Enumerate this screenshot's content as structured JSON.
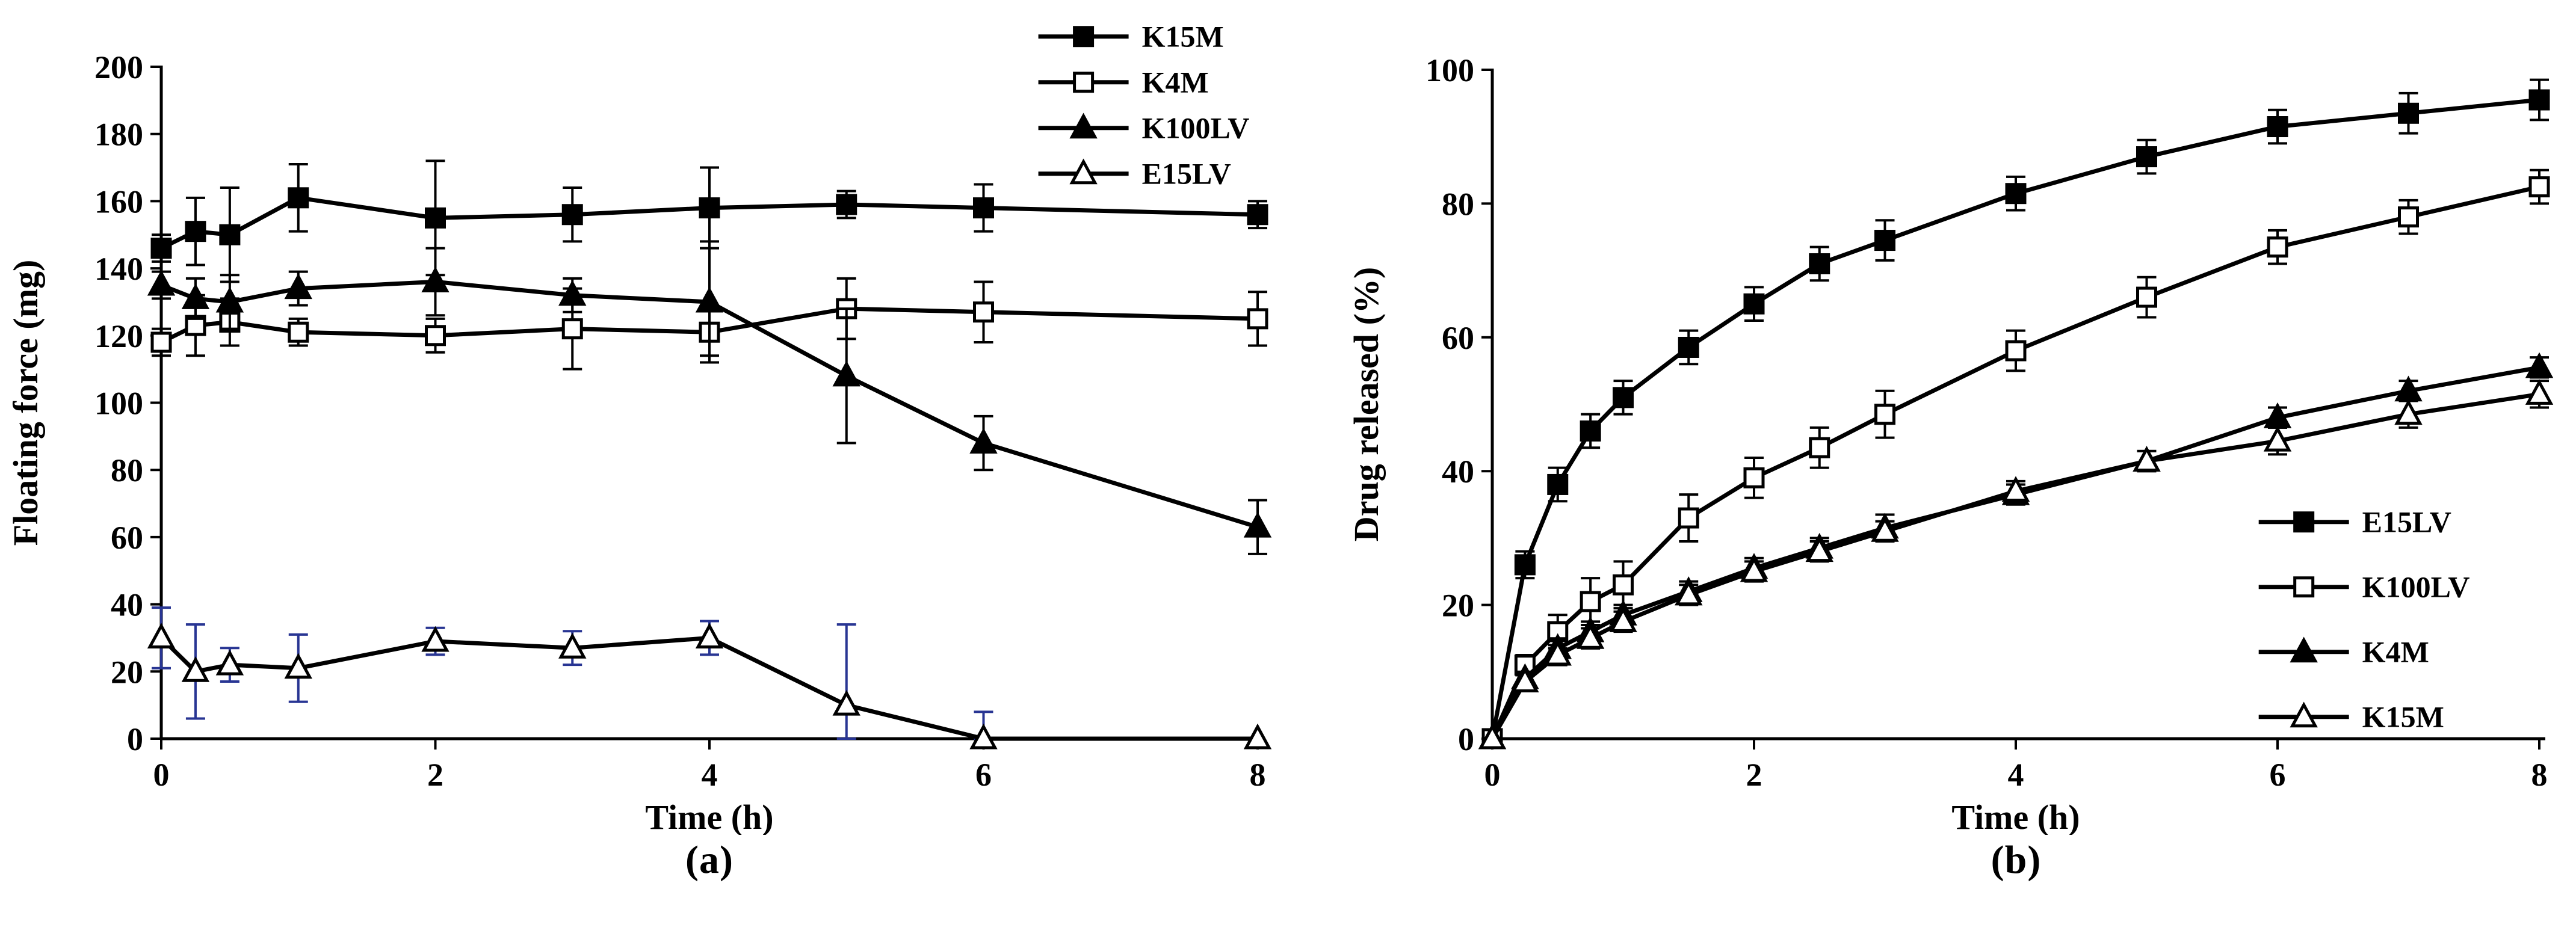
{
  "colors": {
    "line": "#000000",
    "background": "#ffffff",
    "e15lv_error_bar": "#283593"
  },
  "panels": [
    {
      "label": "(a)"
    },
    {
      "label": "(b)"
    }
  ],
  "chart_data": [
    {
      "type": "line",
      "title": "",
      "xlabel": "Time (h)",
      "ylabel": "Floating force (mg)",
      "xlim": [
        0,
        8
      ],
      "ylim": [
        0,
        200
      ],
      "xticks": [
        0,
        2,
        4,
        6,
        8
      ],
      "yticks": [
        0,
        20,
        40,
        60,
        80,
        100,
        120,
        140,
        160,
        180,
        200
      ],
      "grid": false,
      "legend_position": {
        "x_frac": 0.8,
        "y_frac": -0.045
      },
      "x": [
        0,
        0.25,
        0.5,
        1,
        2,
        3,
        4,
        5,
        6,
        8
      ],
      "series": [
        {
          "name": "K15M",
          "marker": "square-filled",
          "color": "#000000",
          "values": [
            146,
            151,
            150,
            161,
            155,
            156,
            158,
            159,
            158,
            156
          ],
          "errors": [
            4,
            10,
            14,
            10,
            17,
            8,
            12,
            4,
            7,
            4
          ]
        },
        {
          "name": "K4M",
          "marker": "square-open",
          "color": "#000000",
          "values": [
            118,
            123,
            124,
            121,
            120,
            122,
            121,
            128,
            127,
            125
          ],
          "errors": [
            4,
            9,
            7,
            4,
            5,
            12,
            7,
            9,
            9,
            8
          ]
        },
        {
          "name": "K100LV",
          "marker": "triangle-filled",
          "color": "#000000",
          "values": [
            135,
            131,
            130,
            134,
            136,
            132,
            130,
            108,
            88,
            63
          ],
          "errors": [
            4,
            6,
            8,
            5,
            10,
            5,
            18,
            20,
            8,
            8
          ]
        },
        {
          "name": "E15LV",
          "marker": "triangle-open",
          "color": "#000000",
          "error_color": "#283593",
          "values": [
            30,
            20,
            22,
            21,
            29,
            27,
            30,
            10,
            0,
            0
          ],
          "errors": [
            9,
            14,
            5,
            10,
            4,
            5,
            5,
            24,
            8,
            0
          ]
        }
      ]
    },
    {
      "type": "line",
      "title": "",
      "xlabel": "Time (h)",
      "ylabel": "Drug released (%)",
      "xlim": [
        0,
        8
      ],
      "ylim": [
        0,
        100
      ],
      "xticks": [
        0,
        2,
        4,
        6,
        8
      ],
      "yticks": [
        0,
        20,
        40,
        60,
        80,
        100
      ],
      "grid": false,
      "legend_position": {
        "x_frac": 0.732,
        "y_frac": 0.676
      },
      "x": [
        0,
        0.25,
        0.5,
        0.75,
        1,
        1.5,
        2,
        2.5,
        3,
        4,
        5,
        6,
        7,
        8
      ],
      "series": [
        {
          "name": "E15LV",
          "marker": "square-filled",
          "color": "#000000",
          "values": [
            0,
            26,
            38,
            46,
            51,
            58.5,
            65,
            71,
            74.5,
            81.5,
            87,
            91.5,
            93.5,
            95.5
          ],
          "errors": [
            0,
            2,
            2.5,
            2.5,
            2.5,
            2.5,
            2.5,
            2.5,
            3,
            2.5,
            2.5,
            2.5,
            3,
            3
          ]
        },
        {
          "name": "K100LV",
          "marker": "square-open",
          "color": "#000000",
          "values": [
            0,
            11,
            16,
            20.5,
            23,
            33,
            39,
            43.5,
            48.5,
            58,
            66,
            73.5,
            78,
            82.5
          ],
          "errors": [
            0,
            1.5,
            2.5,
            3.5,
            3.5,
            3.5,
            3,
            3,
            3.5,
            3,
            3,
            2.5,
            2.5,
            2.5
          ]
        },
        {
          "name": "K4M",
          "marker": "triangle-filled",
          "color": "#000000",
          "values": [
            0,
            9,
            13.5,
            16,
            18.5,
            22,
            25.5,
            28.5,
            31.5,
            36.5,
            41.5,
            48,
            52,
            55.5
          ],
          "errors": [
            0,
            1,
            1.5,
            1.5,
            1.5,
            1.5,
            1.5,
            1.5,
            2,
            1.5,
            1.5,
            1.5,
            1.5,
            1.5
          ]
        },
        {
          "name": "K15M",
          "marker": "triangle-open",
          "color": "#000000",
          "values": [
            0,
            8.5,
            12.5,
            15,
            17.5,
            21.5,
            25,
            28,
            31,
            37,
            41.5,
            44.5,
            48.5,
            51.5
          ],
          "errors": [
            0,
            1,
            1.5,
            1.5,
            1.5,
            1.5,
            1.5,
            1.5,
            1.5,
            1.5,
            1.5,
            2,
            2,
            2
          ]
        }
      ]
    }
  ]
}
